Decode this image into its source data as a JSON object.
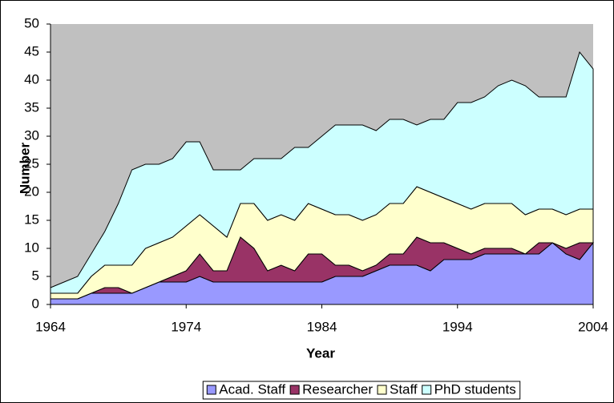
{
  "chart_data": {
    "type": "stacked_area",
    "xlabel": "Year",
    "ylabel": "Number",
    "x": [
      1964,
      1965,
      1966,
      1967,
      1968,
      1969,
      1970,
      1971,
      1972,
      1973,
      1974,
      1975,
      1976,
      1977,
      1978,
      1979,
      1980,
      1981,
      1982,
      1983,
      1984,
      1985,
      1986,
      1987,
      1988,
      1989,
      1990,
      1991,
      1992,
      1993,
      1994,
      1995,
      1996,
      1997,
      1998,
      1999,
      2000,
      2001,
      2002,
      2003,
      2004
    ],
    "series": [
      {
        "name": "Acad. Staff",
        "color": "#9999ff",
        "values": [
          1,
          1,
          1,
          2,
          2,
          2,
          2,
          3,
          4,
          4,
          4,
          5,
          4,
          4,
          4,
          4,
          4,
          4,
          4,
          4,
          4,
          5,
          5,
          5,
          6,
          7,
          7,
          7,
          6,
          8,
          8,
          8,
          9,
          9,
          9,
          9,
          9,
          11,
          9,
          8,
          11
        ]
      },
      {
        "name": "Researcher",
        "color": "#993366",
        "values": [
          0,
          0,
          0,
          0,
          1,
          1,
          0,
          0,
          0,
          1,
          2,
          4,
          2,
          2,
          8,
          6,
          2,
          3,
          2,
          5,
          5,
          2,
          2,
          1,
          1,
          2,
          2,
          5,
          5,
          3,
          2,
          1,
          1,
          1,
          1,
          0,
          2,
          0,
          1,
          3,
          0
        ]
      },
      {
        "name": "Staff",
        "color": "#ffffcc",
        "values": [
          1,
          1,
          1,
          3,
          4,
          4,
          5,
          7,
          7,
          7,
          8,
          7,
          8,
          6,
          6,
          8,
          9,
          9,
          9,
          9,
          8,
          9,
          9,
          9,
          9,
          9,
          9,
          9,
          9,
          8,
          8,
          8,
          8,
          8,
          8,
          7,
          6,
          6,
          6,
          6,
          6
        ]
      },
      {
        "name": "PhD students",
        "color": "#ccffff",
        "values": [
          1,
          2,
          3,
          4,
          6,
          11,
          17,
          15,
          14,
          14,
          15,
          13,
          10,
          12,
          6,
          8,
          11,
          10,
          13,
          10,
          13,
          16,
          16,
          17,
          15,
          15,
          15,
          11,
          13,
          14,
          18,
          19,
          19,
          21,
          22,
          23,
          20,
          20,
          21,
          28,
          25
        ]
      }
    ],
    "xlim": [
      1964,
      2004
    ],
    "xticks": [
      1964,
      1974,
      1984,
      1994,
      2004
    ],
    "ylim": [
      0,
      50
    ],
    "yticks": [
      0,
      5,
      10,
      15,
      20,
      25,
      30,
      35,
      40,
      45,
      50
    ],
    "plot_background": "#c0c0c0",
    "legend": "bottom"
  }
}
